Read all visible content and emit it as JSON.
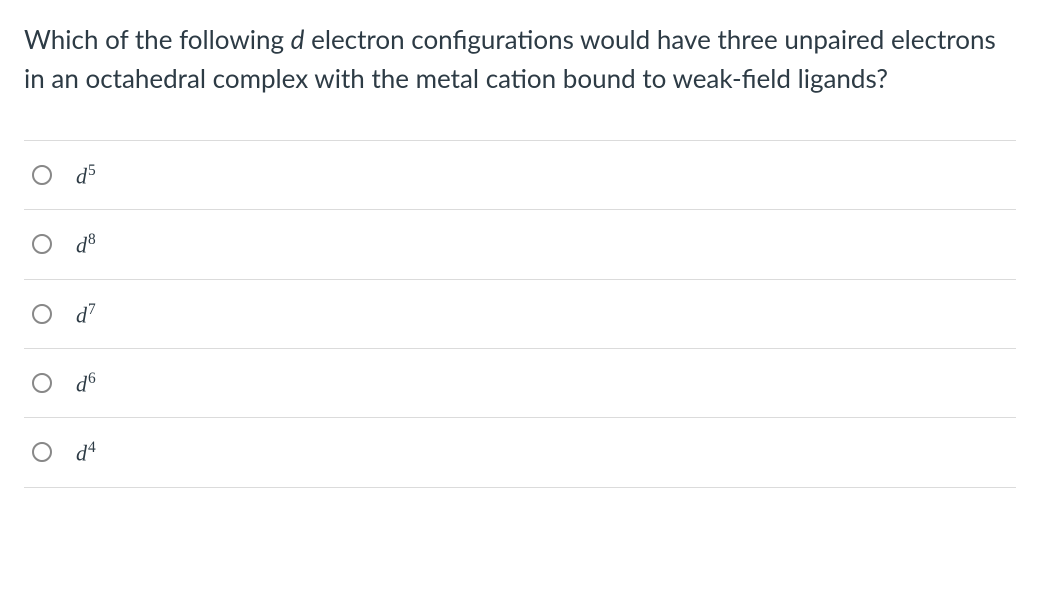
{
  "question": {
    "parts": [
      {
        "text": "Which of the following ",
        "italic": false
      },
      {
        "text": "d",
        "italic": true
      },
      {
        "text": " electron configurations would have three unpaired electrons in an octahedral complex with the metal cation bound to weak-field ligands?",
        "italic": false
      }
    ]
  },
  "options": [
    {
      "base": "d",
      "sup": "5"
    },
    {
      "base": "d",
      "sup": "8"
    },
    {
      "base": "d",
      "sup": "7"
    },
    {
      "base": "d",
      "sup": "6"
    },
    {
      "base": "d",
      "sup": "4"
    }
  ],
  "styling": {
    "text_color": "#2d3b45",
    "border_color": "#dbdbdb",
    "radio_border": "#888888",
    "background": "#ffffff",
    "question_fontsize": 26,
    "option_fontsize": 22
  }
}
